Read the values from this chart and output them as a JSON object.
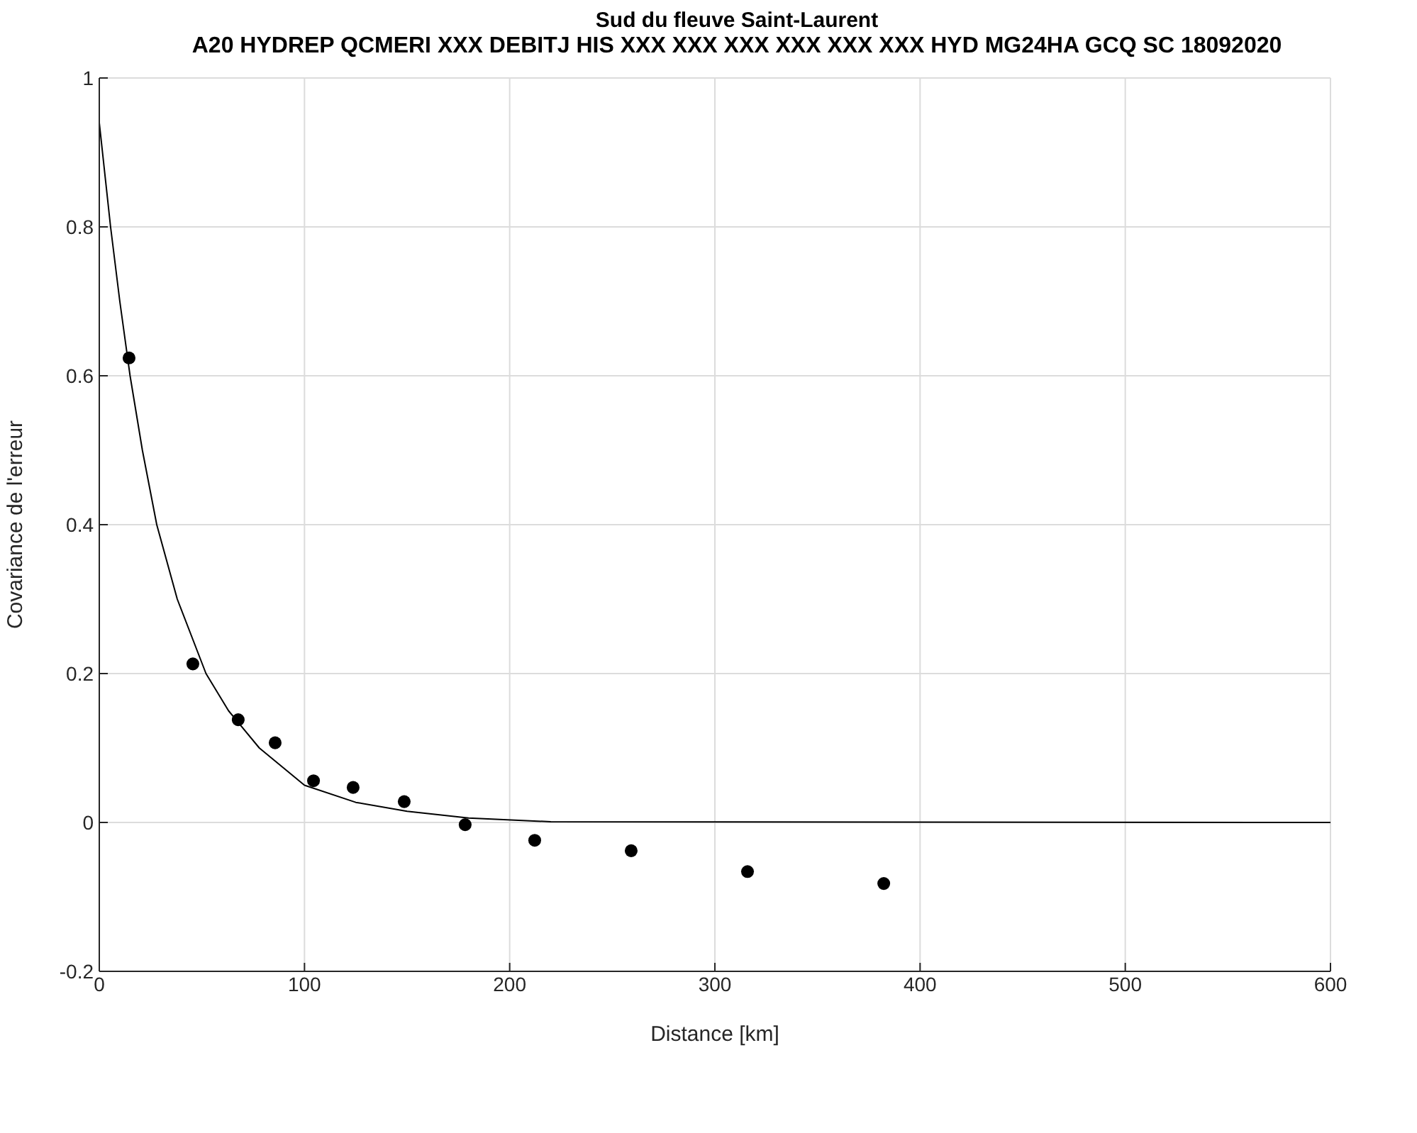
{
  "chart_data": {
    "type": "scatter",
    "title": "Sud du fleuve Saint-Laurent",
    "subtitle": "A20 HYDREP QCMERI XXX DEBITJ HIS XXX XXX XXX XXX XXX XXX HYD MG24HA GCQ SC 18092020",
    "xlabel": "Distance [km]",
    "ylabel": "Covariance de l'erreur",
    "series": [
      {
        "color": "#000000",
        "marker": "circle",
        "x": [
          14.5,
          45.6,
          67.7,
          85.7,
          104.4,
          123.7,
          148.6,
          178.3,
          212.2,
          259.2,
          315.9,
          382.3
        ],
        "values": [
          0.624,
          0.213,
          0.138,
          0.107,
          0.056,
          0.047,
          0.028,
          -0.003,
          -0.024,
          -0.038,
          -0.066,
          -0.082
        ]
      },
      {
        "type": "line",
        "color": "#000000",
        "marker": "none",
        "x": [
          0,
          5.5,
          10,
          15,
          21,
          28,
          38,
          52,
          63,
          78,
          100,
          125,
          150,
          180,
          220,
          600
        ],
        "values": [
          0.94,
          0.8,
          0.7,
          0.6,
          0.5,
          0.4,
          0.3,
          0.2,
          0.15,
          0.1,
          0.05,
          0.027,
          0.015,
          0.006,
          0.001,
          0
        ]
      }
    ],
    "xlim": [
      0,
      600
    ],
    "xticks": [
      0,
      100,
      200,
      300,
      400,
      500,
      600
    ],
    "ylim": [
      -0.2,
      1
    ],
    "yticks": [
      -0.2,
      0,
      0.2,
      0.4,
      0.6,
      0.8,
      1
    ],
    "grid": true
  }
}
